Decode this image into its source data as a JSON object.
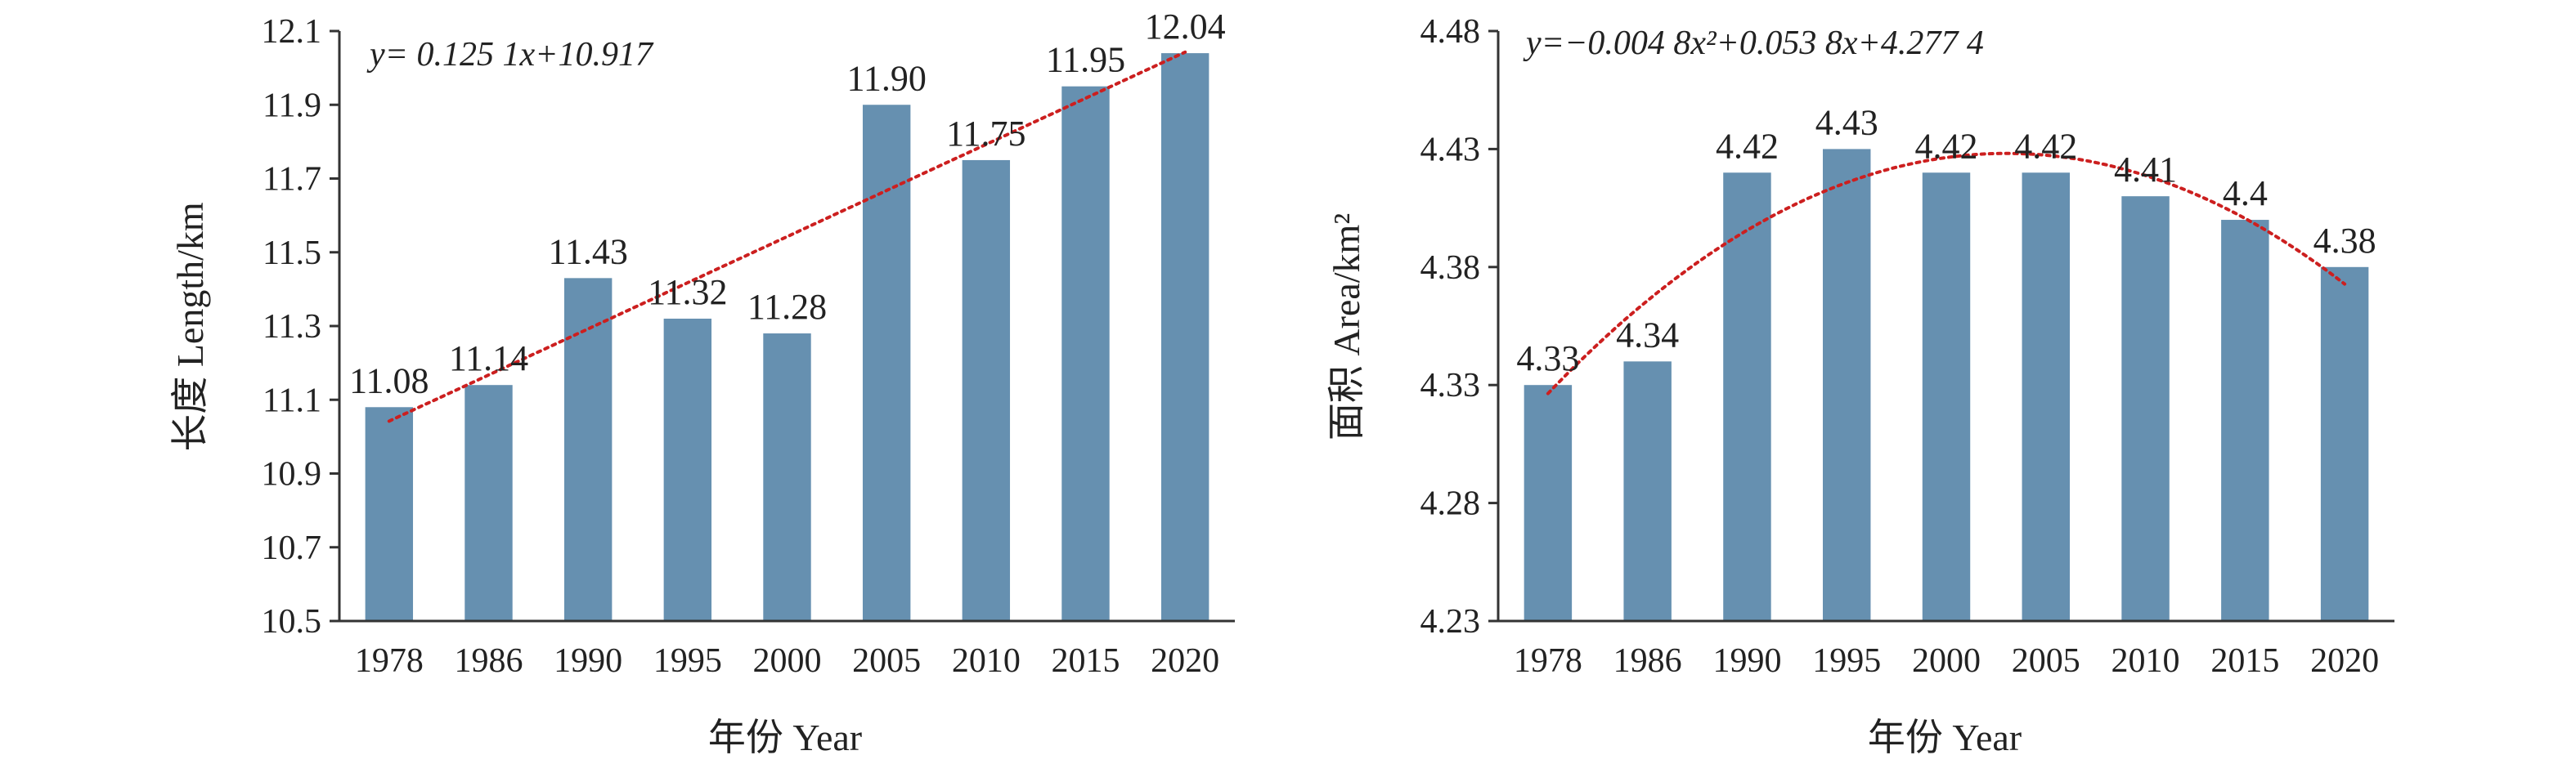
{
  "colors": {
    "bar": "#6690b0",
    "trend": "#cc1f1f",
    "axis": "#333333",
    "text": "#222222"
  },
  "chart_data": [
    {
      "type": "bar",
      "title": "",
      "categories": [
        "1978",
        "1986",
        "1990",
        "1995",
        "2000",
        "2005",
        "2010",
        "2015",
        "2020"
      ],
      "values": [
        11.08,
        11.14,
        11.43,
        11.32,
        11.28,
        11.9,
        11.75,
        11.95,
        12.04
      ],
      "value_labels": [
        "11.08",
        "11.14",
        "11.43",
        "11.32",
        "11.28",
        "11.90",
        "11.75",
        "11.95",
        "12.04"
      ],
      "ylim": [
        10.5,
        12.1
      ],
      "yticks": [
        "10.5",
        "10.7",
        "10.9",
        "11.1",
        "11.3",
        "11.5",
        "11.7",
        "11.9",
        "12.1"
      ],
      "xlabel": "年份 Year",
      "ylabel": "长度 Length/km",
      "trendline": {
        "type": "linear",
        "equation": "y= 0.125 1x+10.917",
        "coefficients": [
          10.917,
          0.1251
        ]
      }
    },
    {
      "type": "bar",
      "title": "",
      "categories": [
        "1978",
        "1986",
        "1990",
        "1995",
        "2000",
        "2005",
        "2010",
        "2015",
        "2020"
      ],
      "values": [
        4.33,
        4.34,
        4.42,
        4.43,
        4.42,
        4.42,
        4.41,
        4.4,
        4.38
      ],
      "value_labels": [
        "4.33",
        "4.34",
        "4.42",
        "4.43",
        "4.42",
        "4.42",
        "4.41",
        "4.4",
        "4.38"
      ],
      "ylim": [
        4.23,
        4.48
      ],
      "yticks": [
        "4.23",
        "4.28",
        "4.33",
        "4.38",
        "4.43",
        "4.48"
      ],
      "xlabel": "年份 Year",
      "ylabel": "面积 Area/km²",
      "trendline": {
        "type": "polynomial",
        "equation": "y=−0.004 8x²+0.053 8x+4.277 4",
        "coefficients": [
          4.2774,
          0.0538,
          -0.0048
        ]
      }
    }
  ]
}
